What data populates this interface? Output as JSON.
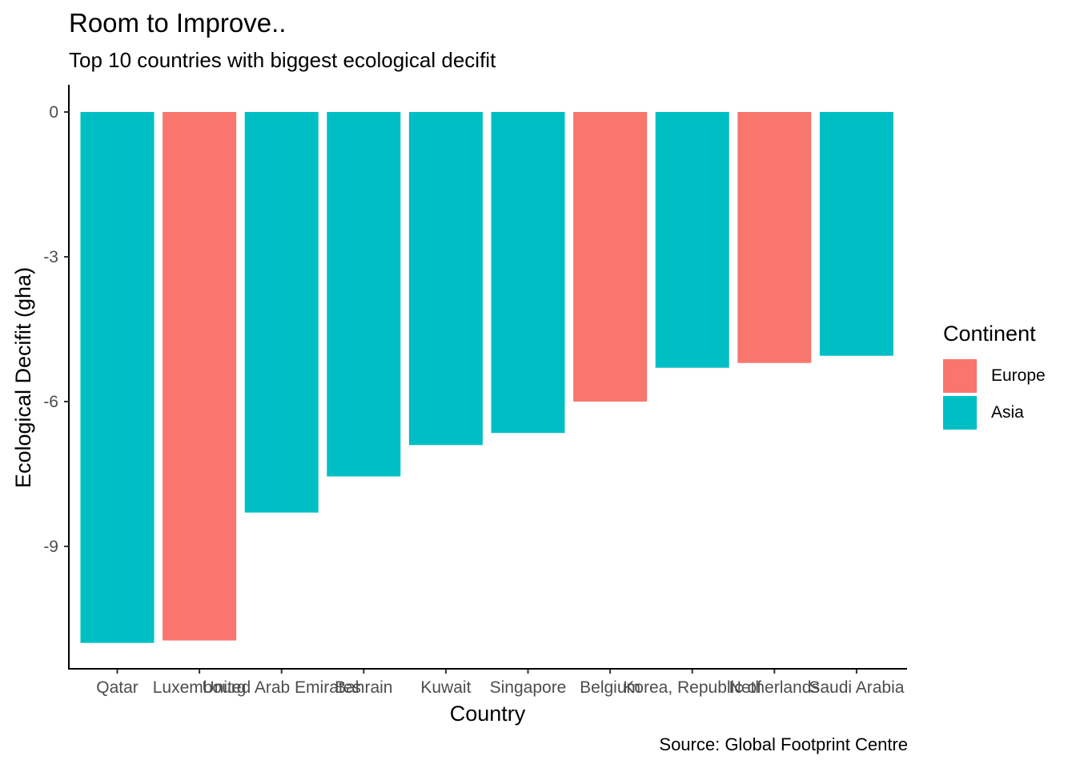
{
  "chart_data": {
    "type": "bar",
    "title": "Room to Improve..",
    "subtitle": "Top 10 countries with biggest ecological decifit",
    "caption": "Source: Global Footprint Centre",
    "xlabel": "Country",
    "ylabel": "Ecological Decifit (gha)",
    "categories": [
      "Qatar",
      "Luxembourg",
      "United Arab Emirates",
      "Bahrain",
      "Kuwait",
      "Singapore",
      "Belgium",
      "Korea, Republic of",
      "Netherlands",
      "Saudi Arabia"
    ],
    "values": [
      -11.0,
      -10.95,
      -8.3,
      -7.55,
      -6.9,
      -6.65,
      -6.0,
      -5.3,
      -5.2,
      -5.05
    ],
    "continent": [
      "Asia",
      "Europe",
      "Asia",
      "Asia",
      "Asia",
      "Asia",
      "Europe",
      "Asia",
      "Europe",
      "Asia"
    ],
    "yticks": [
      0,
      -3,
      -6,
      -9
    ],
    "ylim": [
      -11.0,
      0
    ],
    "legend": {
      "title": "Continent",
      "placement": "right",
      "entries": [
        {
          "name": "Europe",
          "color": "#F8766D"
        },
        {
          "name": "Asia",
          "color": "#00BFC4"
        }
      ]
    },
    "grid": false
  }
}
